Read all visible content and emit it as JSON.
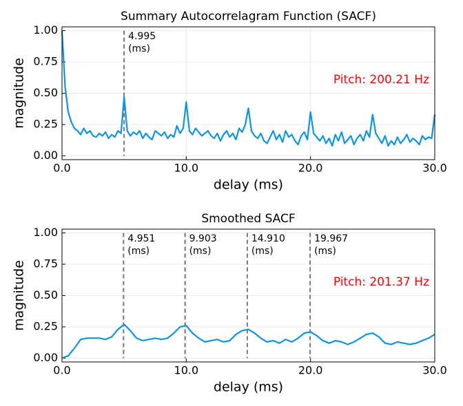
{
  "chart_data": [
    {
      "type": "line",
      "title": "Summary Autocorrelagram Function (SACF)",
      "xlabel": "delay (ms)",
      "ylabel": "magnitude",
      "color": "#0a94e8",
      "x": [
        0,
        0.25,
        0.5,
        0.75,
        1,
        1.25,
        1.5,
        1.75,
        2,
        2.25,
        2.5,
        2.75,
        3,
        3.25,
        3.5,
        3.75,
        4,
        4.25,
        4.5,
        4.75,
        5,
        5.25,
        5.5,
        5.75,
        6,
        6.25,
        6.5,
        6.75,
        7,
        7.25,
        7.5,
        7.75,
        8,
        8.25,
        8.5,
        8.75,
        9,
        9.25,
        9.5,
        9.75,
        10,
        10.25,
        10.5,
        10.75,
        11,
        11.25,
        11.5,
        11.75,
        12,
        12.25,
        12.5,
        12.75,
        13,
        13.25,
        13.5,
        13.75,
        14,
        14.25,
        14.5,
        14.75,
        15,
        15.25,
        15.5,
        15.75,
        16,
        16.25,
        16.5,
        16.75,
        17,
        17.25,
        17.5,
        17.75,
        18,
        18.25,
        18.5,
        18.75,
        19,
        19.25,
        19.5,
        19.75,
        20,
        20.25,
        20.5,
        20.75,
        21,
        21.25,
        21.5,
        21.75,
        22,
        22.25,
        22.5,
        22.75,
        23,
        23.25,
        23.5,
        23.75,
        24,
        24.25,
        24.5,
        24.75,
        25,
        25.25,
        25.5,
        25.75,
        26,
        26.25,
        26.5,
        26.75,
        27,
        27.25,
        27.5,
        27.75,
        28,
        28.25,
        28.5,
        28.75,
        29,
        29.25,
        29.5,
        29.75,
        30
      ],
      "values": [
        1.0,
        0.55,
        0.35,
        0.27,
        0.22,
        0.2,
        0.17,
        0.22,
        0.18,
        0.2,
        0.16,
        0.15,
        0.18,
        0.16,
        0.19,
        0.14,
        0.17,
        0.15,
        0.2,
        0.18,
        0.47,
        0.2,
        0.16,
        0.19,
        0.17,
        0.2,
        0.14,
        0.18,
        0.15,
        0.13,
        0.2,
        0.18,
        0.16,
        0.19,
        0.14,
        0.17,
        0.15,
        0.24,
        0.18,
        0.22,
        0.43,
        0.2,
        0.17,
        0.22,
        0.19,
        0.16,
        0.18,
        0.2,
        0.16,
        0.14,
        0.18,
        0.12,
        0.17,
        0.2,
        0.15,
        0.18,
        0.13,
        0.22,
        0.19,
        0.25,
        0.38,
        0.2,
        0.16,
        0.14,
        0.18,
        0.12,
        0.1,
        0.15,
        0.2,
        0.13,
        0.17,
        0.11,
        0.2,
        0.15,
        0.17,
        0.12,
        0.09,
        0.16,
        0.19,
        0.13,
        0.35,
        0.18,
        0.15,
        0.12,
        0.16,
        0.1,
        0.14,
        0.08,
        0.17,
        0.12,
        0.19,
        0.1,
        0.13,
        0.16,
        0.09,
        0.14,
        0.17,
        0.12,
        0.2,
        0.15,
        0.33,
        0.18,
        0.14,
        0.1,
        0.16,
        0.08,
        0.12,
        0.09,
        0.15,
        0.1,
        0.13,
        0.17,
        0.11,
        0.14,
        0.12,
        0.09,
        0.16,
        0.13,
        0.15,
        0.14,
        0.33
      ],
      "xlim": [
        0,
        30
      ],
      "ylim": [
        -0.03,
        1.03
      ],
      "xticks": [
        {
          "value": 0,
          "label": "0.0"
        },
        {
          "value": 10,
          "label": "10.0"
        },
        {
          "value": 20,
          "label": "20.0"
        },
        {
          "value": 30,
          "label": "30.0"
        }
      ],
      "yticks": [
        {
          "value": 0,
          "label": "0.00"
        },
        {
          "value": 0.25,
          "label": "0.25"
        },
        {
          "value": 0.5,
          "label": "0.50"
        },
        {
          "value": 0.75,
          "label": "0.75"
        },
        {
          "value": 1,
          "label": "1.00"
        }
      ],
      "grid": true,
      "markers": [
        {
          "x": 4.995,
          "label": "4.995",
          "unit": "(ms)"
        }
      ],
      "pitch_label": "Pitch: 200.21 Hz"
    },
    {
      "type": "line",
      "title": "Smoothed SACF",
      "xlabel": "delay (ms)",
      "ylabel": "magnitude",
      "color": "#0a94e8",
      "x": [
        0,
        0.5,
        1,
        1.5,
        2,
        2.5,
        3,
        3.5,
        4,
        4.5,
        5,
        5.5,
        6,
        6.5,
        7,
        7.5,
        8,
        8.5,
        9,
        9.5,
        10,
        10.5,
        11,
        11.5,
        12,
        12.5,
        13,
        13.5,
        14,
        14.5,
        15,
        15.5,
        16,
        16.5,
        17,
        17.5,
        18,
        18.5,
        19,
        19.5,
        20,
        20.5,
        21,
        21.5,
        22,
        22.5,
        23,
        23.5,
        24,
        24.5,
        25,
        25.5,
        26,
        26.5,
        27,
        27.5,
        28,
        28.5,
        29,
        29.5,
        30
      ],
      "values": [
        0.0,
        0.02,
        0.08,
        0.15,
        0.16,
        0.16,
        0.16,
        0.15,
        0.17,
        0.23,
        0.27,
        0.22,
        0.16,
        0.14,
        0.15,
        0.16,
        0.15,
        0.16,
        0.2,
        0.25,
        0.26,
        0.2,
        0.16,
        0.13,
        0.14,
        0.15,
        0.13,
        0.14,
        0.19,
        0.22,
        0.23,
        0.2,
        0.16,
        0.13,
        0.14,
        0.12,
        0.15,
        0.13,
        0.16,
        0.2,
        0.21,
        0.18,
        0.14,
        0.12,
        0.14,
        0.13,
        0.11,
        0.13,
        0.16,
        0.19,
        0.2,
        0.17,
        0.12,
        0.11,
        0.13,
        0.12,
        0.11,
        0.12,
        0.14,
        0.16,
        0.19
      ],
      "xlim": [
        0,
        30
      ],
      "ylim": [
        -0.03,
        1.03
      ],
      "xticks": [
        {
          "value": 0,
          "label": "0.0"
        },
        {
          "value": 10,
          "label": "10.0"
        },
        {
          "value": 20,
          "label": "20.0"
        },
        {
          "value": 30,
          "label": "30.0"
        }
      ],
      "yticks": [
        {
          "value": 0,
          "label": "0.00"
        },
        {
          "value": 0.25,
          "label": "0.25"
        },
        {
          "value": 0.5,
          "label": "0.50"
        },
        {
          "value": 0.75,
          "label": "0.75"
        },
        {
          "value": 1,
          "label": "1.00"
        }
      ],
      "grid": true,
      "markers": [
        {
          "x": 4.951,
          "label": "4.951",
          "unit": "(ms)"
        },
        {
          "x": 9.903,
          "label": "9.903",
          "unit": "(ms)"
        },
        {
          "x": 14.91,
          "label": "14.910",
          "unit": "(ms)"
        },
        {
          "x": 19.967,
          "label": "19.967",
          "unit": "(ms)"
        }
      ],
      "pitch_label": "Pitch: 201.37 Hz"
    }
  ]
}
